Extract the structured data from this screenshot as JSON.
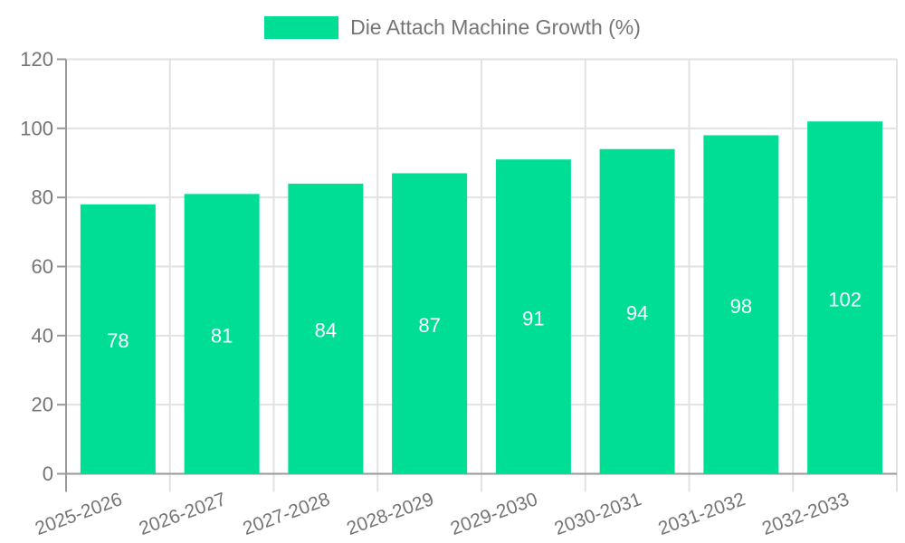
{
  "chart_data": {
    "type": "bar",
    "title": "Die Attach Machine Growth (%)",
    "categories": [
      "2025-2026",
      "2026-2027",
      "2027-2028",
      "2028-2029",
      "2029-2030",
      "2030-2031",
      "2031-2032",
      "2032-2033"
    ],
    "series": [
      {
        "name": "Die Attach Machine Growth (%)",
        "values": [
          78,
          81,
          84,
          87,
          91,
          94,
          98,
          102
        ]
      }
    ],
    "xlabel": "",
    "ylabel": "",
    "ylim": [
      0,
      120
    ],
    "ytick_step": 20,
    "ytick_labels": [
      "0",
      "20",
      "40",
      "60",
      "80",
      "100",
      "120"
    ],
    "grid": "horizontal-and-vertical",
    "legend_position": "top-center",
    "x_label_rotation_deg": -20,
    "value_labels": "inside-center-white",
    "colors": {
      "bar": "#00DE96",
      "value_label": "#ffffff",
      "axis_text": "#757575",
      "grid_line": "#e2e2e2",
      "axis_line": "#999999",
      "background": "#ffffff"
    }
  }
}
